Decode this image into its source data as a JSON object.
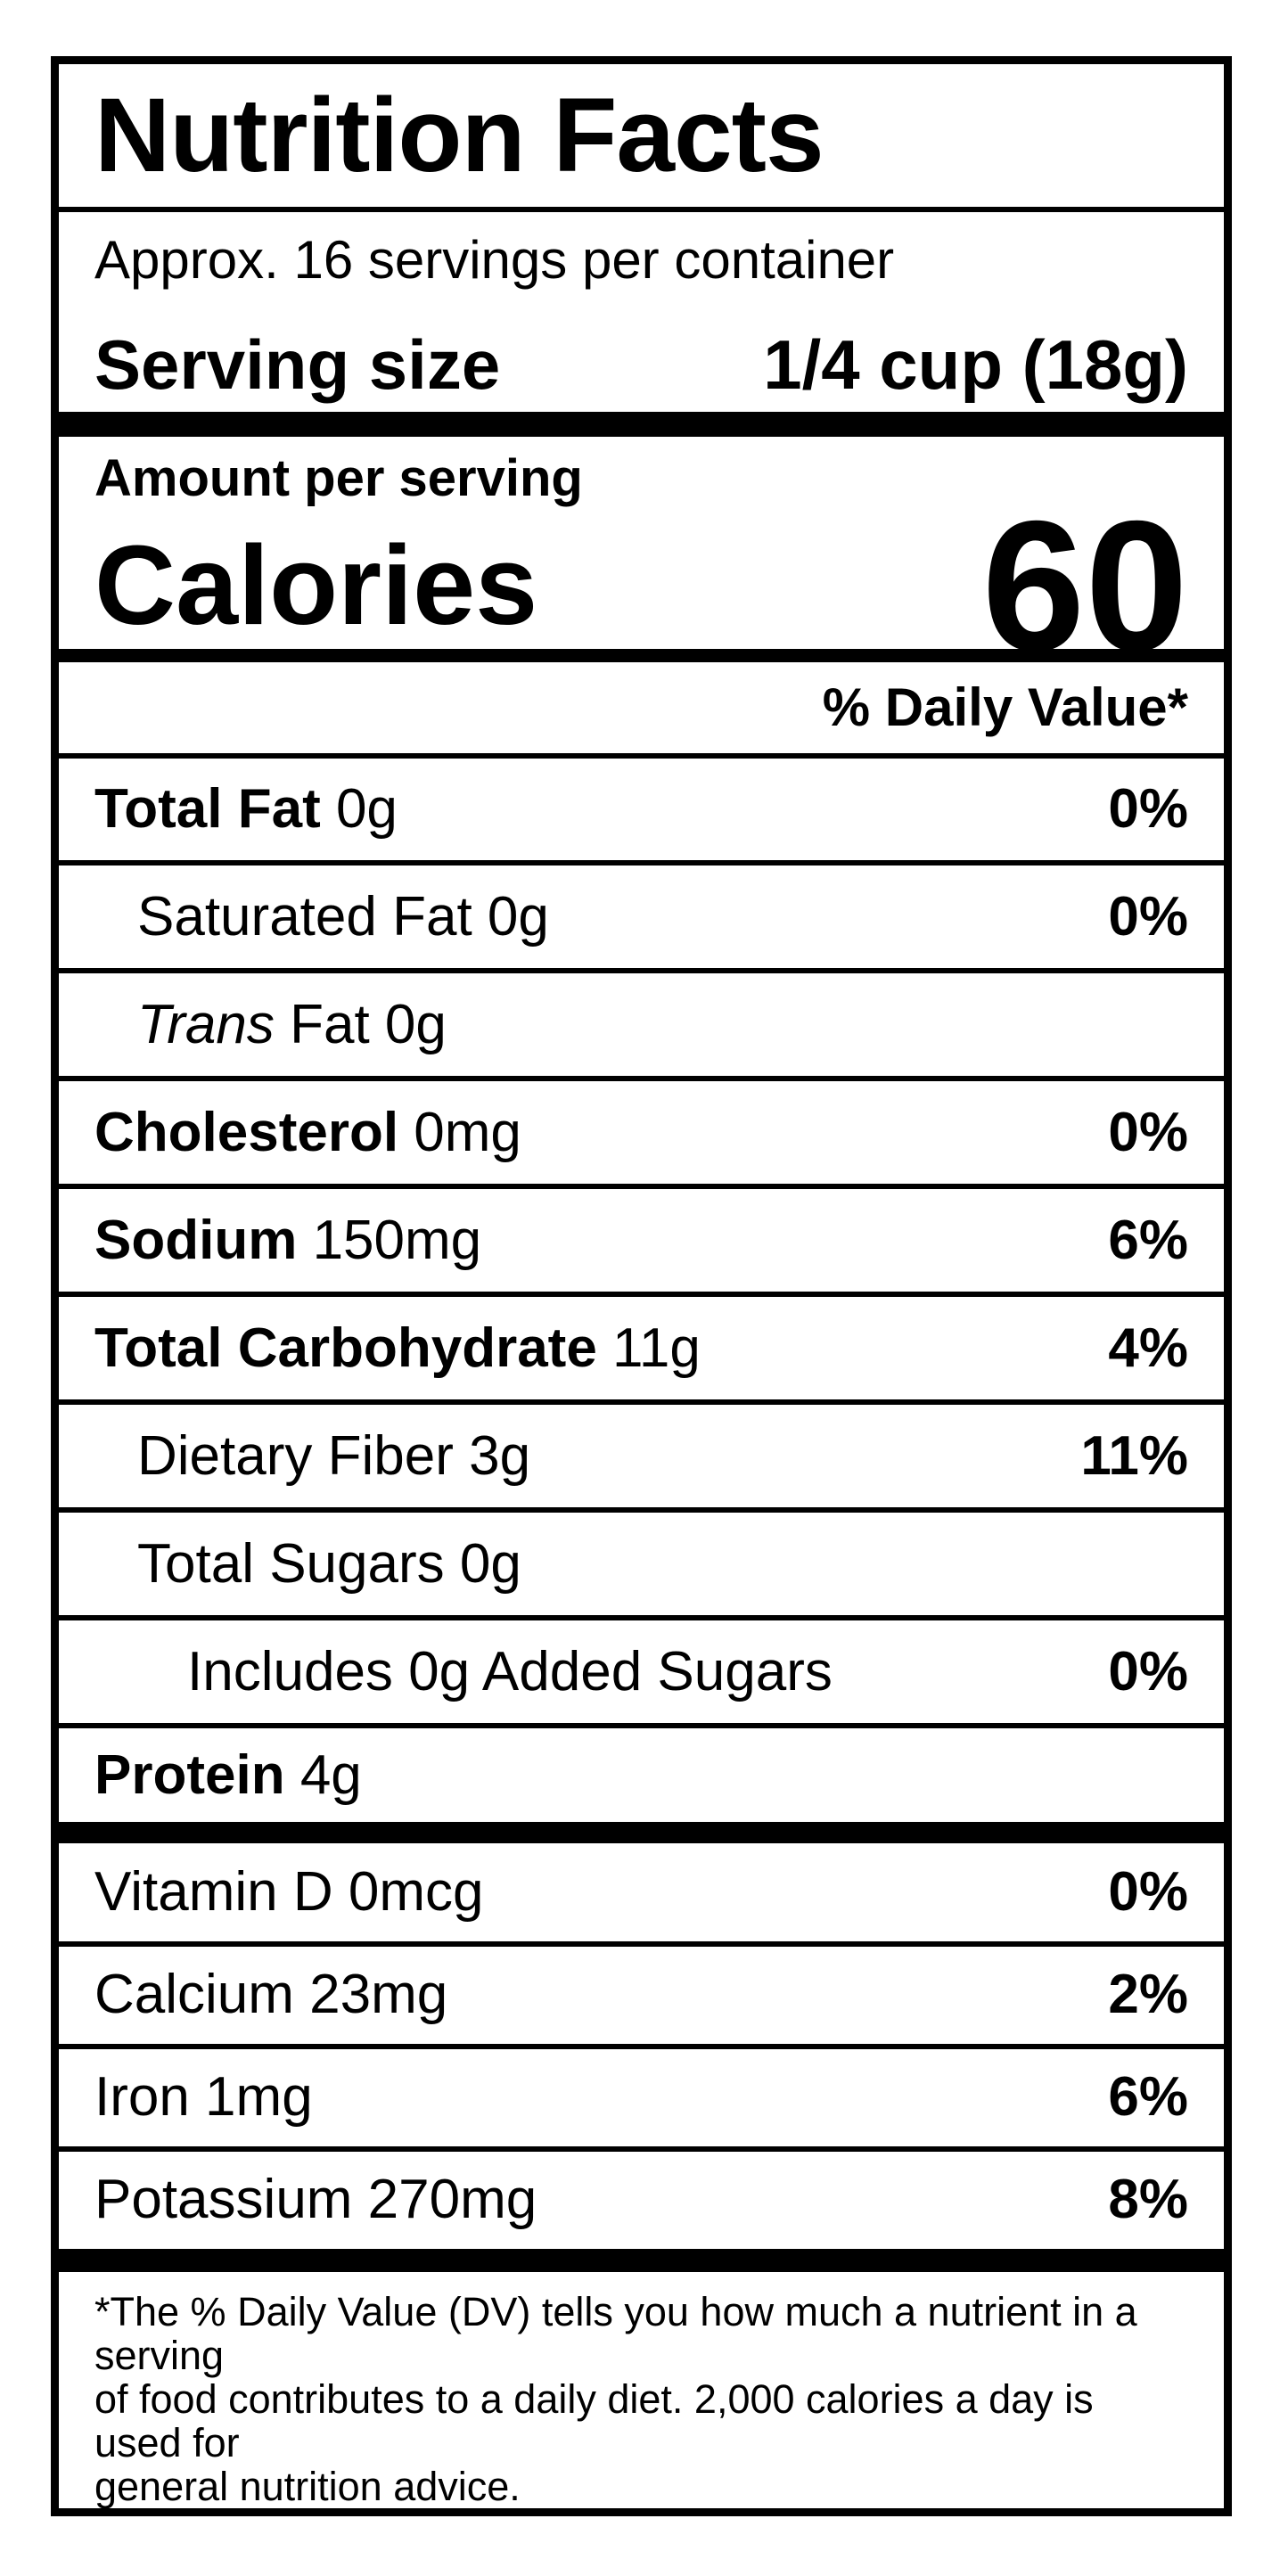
{
  "label": {
    "title": "Nutrition Facts",
    "servings_per_container": "Approx. 16 servings per container",
    "serving_size_label": "Serving size",
    "serving_size_value": "1/4 cup (18g)",
    "amount_per_serving": "Amount per serving",
    "calories_label": "Calories",
    "calories_value": "60",
    "daily_value_header": "% Daily Value*",
    "footnote": "*The % Daily Value (DV) tells you how much a nutrient in a serving\nof food contributes to a daily diet. 2,000 calories a day is used for\ngeneral nutrition advice."
  },
  "rows": [
    {
      "italic": "",
      "bold": "Total Fat ",
      "text": "0g",
      "pct": "0%"
    },
    {
      "italic": "",
      "bold": "",
      "text": "Saturated Fat 0g",
      "pct": "0%"
    },
    {
      "italic": "Trans ",
      "bold": "",
      "text": "Fat 0g",
      "pct": ""
    },
    {
      "italic": "",
      "bold": "Cholesterol ",
      "text": "0mg",
      "pct": "0%"
    },
    {
      "italic": "",
      "bold": "Sodium ",
      "text": "150mg",
      "pct": "6%"
    },
    {
      "italic": "",
      "bold": "Total Carbohydrate ",
      "text": "11g",
      "pct": "4%"
    },
    {
      "italic": "",
      "bold": "",
      "text": "Dietary Fiber 3g",
      "pct": "11%"
    },
    {
      "italic": "",
      "bold": "",
      "text": "Total Sugars 0g",
      "pct": ""
    },
    {
      "italic": "",
      "bold": "",
      "text": "Includes 0g Added Sugars",
      "pct": "0%"
    },
    {
      "italic": "",
      "bold": "Protein ",
      "text": "4g",
      "pct": ""
    }
  ],
  "minerals": [
    {
      "text": "Vitamin D 0mcg",
      "pct": "0%"
    },
    {
      "text": "Calcium 23mg",
      "pct": "2%"
    },
    {
      "text": "Iron 1mg",
      "pct": "6%"
    },
    {
      "text": "Potassium 270mg",
      "pct": "8%"
    }
  ],
  "colors": {
    "ink": "#000000",
    "paper": "#ffffff"
  }
}
